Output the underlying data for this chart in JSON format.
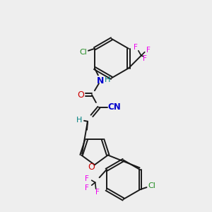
{
  "background_color": "#eeeeee",
  "bond_color": "#1a1a1a",
  "atom_colors": {
    "F": "#ee00ee",
    "Cl": "#228B22",
    "N": "#0000cc",
    "H": "#008080",
    "O": "#cc0000",
    "CN_color": "#0000cc"
  },
  "figsize": [
    3.0,
    3.0
  ],
  "dpi": 100
}
